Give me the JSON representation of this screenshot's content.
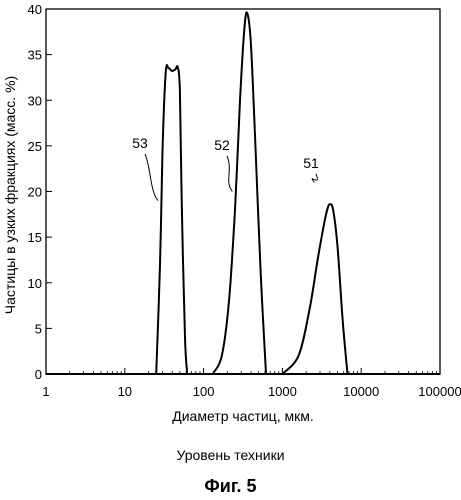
{
  "chart_data": {
    "type": "line",
    "x_scale": "log",
    "xlabel": "Диаметр частиц, мкм.",
    "ylabel": "Частицы в узких фракциях (масс. %)",
    "xlim": [
      1,
      100000
    ],
    "ylim": [
      0,
      40
    ],
    "x_ticks": [
      1,
      10,
      100,
      1000,
      10000,
      100000
    ],
    "x_tick_labels": [
      "1",
      "10",
      "100",
      "1000",
      "10000",
      "100000"
    ],
    "y_ticks": [
      0,
      5,
      10,
      15,
      20,
      25,
      30,
      35,
      40
    ],
    "y_tick_labels": [
      "0",
      "5",
      "10",
      "15",
      "20",
      "25",
      "30",
      "35",
      "40"
    ],
    "grid": false,
    "series": [
      {
        "name": "53",
        "x": [
          25,
          28,
          30,
          33,
          36,
          40,
          44,
          47,
          50,
          53,
          58,
          62
        ],
        "y": [
          0,
          12,
          24,
          33,
          33.5,
          33.2,
          33.4,
          33.6,
          31,
          18,
          4,
          0
        ]
      },
      {
        "name": "52",
        "x": [
          130,
          170,
          210,
          250,
          290,
          330,
          360,
          400,
          460,
          530,
          620
        ],
        "y": [
          0,
          2,
          8,
          18,
          30,
          38,
          39.5,
          36,
          24,
          11,
          0
        ]
      },
      {
        "name": "51",
        "x": [
          1000,
          1600,
          2200,
          2800,
          3300,
          3700,
          4000,
          4400,
          5000,
          5800,
          6700
        ],
        "y": [
          0,
          2,
          7,
          12.5,
          16,
          18,
          18.6,
          18,
          14,
          6,
          0
        ]
      }
    ],
    "annotations": [
      {
        "text": "53",
        "series": "53"
      },
      {
        "text": "52",
        "series": "52"
      },
      {
        "text": "51",
        "series": "51"
      }
    ]
  },
  "caption": {
    "subtitle": "Уровень техники",
    "figure": "Фиг. 5"
  }
}
